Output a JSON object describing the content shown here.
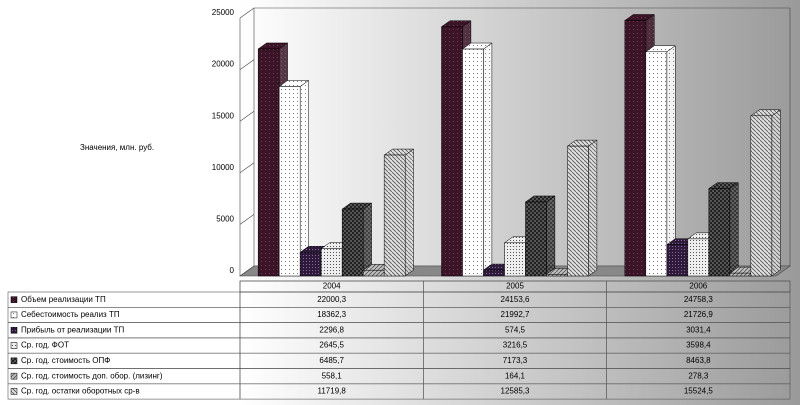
{
  "chart_data": {
    "type": "bar",
    "y_label": "Значения, млн. руб.",
    "categories": [
      "2004",
      "2005",
      "2006"
    ],
    "ylim": [
      0,
      25000
    ],
    "yticks": [
      0,
      5000,
      10000,
      15000,
      20000,
      25000
    ],
    "series": [
      {
        "name": "Объем реализации ТП",
        "color": "#3b1427",
        "values": [
          22000.3,
          24153.6,
          24758.3
        ],
        "value_labels": [
          "22000,3",
          "24153,6",
          "24758,3"
        ]
      },
      {
        "name": "Себестоимость реализ ТП",
        "color": "#ffffff",
        "values": [
          18362.3,
          21992.7,
          21726.9
        ],
        "value_labels": [
          "18362,3",
          "21992,7",
          "21726,9"
        ]
      },
      {
        "name": "Прибыль от реализации ТП",
        "color": "#2e1a3a",
        "values": [
          2296.8,
          574.5,
          3031.4
        ],
        "value_labels": [
          "2296,8",
          "574,5",
          "3031,4"
        ]
      },
      {
        "name": "Ср. год. ФОТ",
        "color": "#eeeeee",
        "values": [
          2645.5,
          3216.5,
          3598.4
        ],
        "value_labels": [
          "2645,5",
          "3216,5",
          "3598,4"
        ]
      },
      {
        "name": "Ср. год. стоимость ОПФ",
        "color": "#555555",
        "values": [
          6485.7,
          7173.3,
          8463.8
        ],
        "value_labels": [
          "6485,7",
          "7173,3",
          "8463,8"
        ]
      },
      {
        "name": "Ср. год. стоимость доп. обор. (лизинг)",
        "color": "#bbbbbb",
        "values": [
          558.1,
          164.1,
          278.3
        ],
        "value_labels": [
          "558,1",
          "164,1",
          "278,3"
        ]
      },
      {
        "name": "Ср. год. остатки оборотных ср-в",
        "color": "#dddddd",
        "values": [
          11719.8,
          12585.3,
          15524.5
        ],
        "value_labels": [
          "11719,8",
          "12585,3",
          "15524,5"
        ]
      }
    ]
  }
}
